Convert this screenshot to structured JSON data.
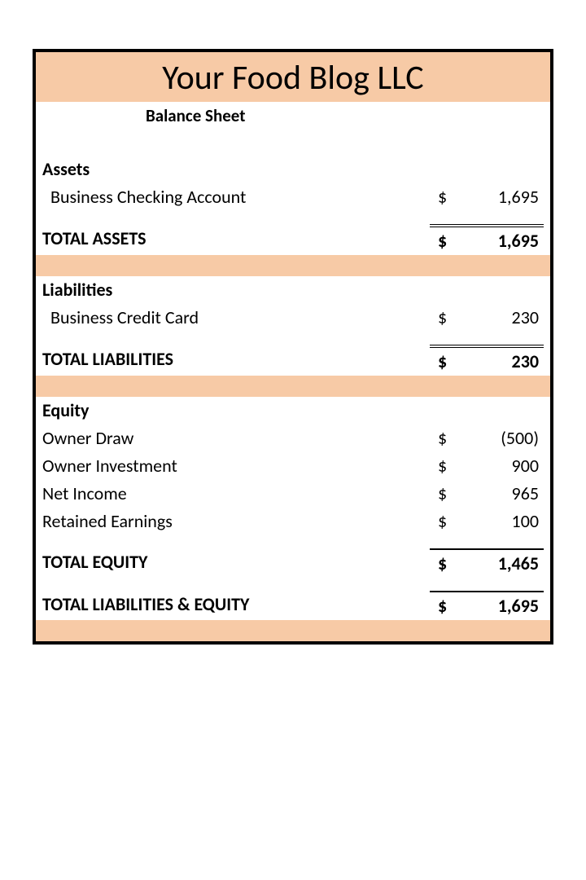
{
  "title": "Your Food Blog LLC",
  "subtitle": "Balance Sheet",
  "currency_symbol": "$",
  "colors": {
    "band": "#f7caa6",
    "border": "#000000",
    "text": "#000000",
    "background": "#ffffff"
  },
  "assets": {
    "heading": "Assets",
    "items": [
      {
        "label": "Business Checking Account",
        "value": "1,695"
      }
    ],
    "total_label": "TOTAL ASSETS",
    "total_value": "1,695"
  },
  "liabilities": {
    "heading": "Liabilities",
    "items": [
      {
        "label": "Business Credit Card",
        "value": "230"
      }
    ],
    "total_label": "TOTAL LIABILITIES",
    "total_value": "230"
  },
  "equity": {
    "heading": "Equity",
    "items": [
      {
        "label": "Owner Draw",
        "value": "(500)"
      },
      {
        "label": "Owner Investment",
        "value": "900"
      },
      {
        "label": "Net Income",
        "value": "965"
      },
      {
        "label": "Retained Earnings",
        "value": "100"
      }
    ],
    "total_label": "TOTAL EQUITY",
    "total_value": "1,465"
  },
  "grand": {
    "label": "TOTAL LIABILITIES & EQUITY",
    "value": "1,695"
  }
}
